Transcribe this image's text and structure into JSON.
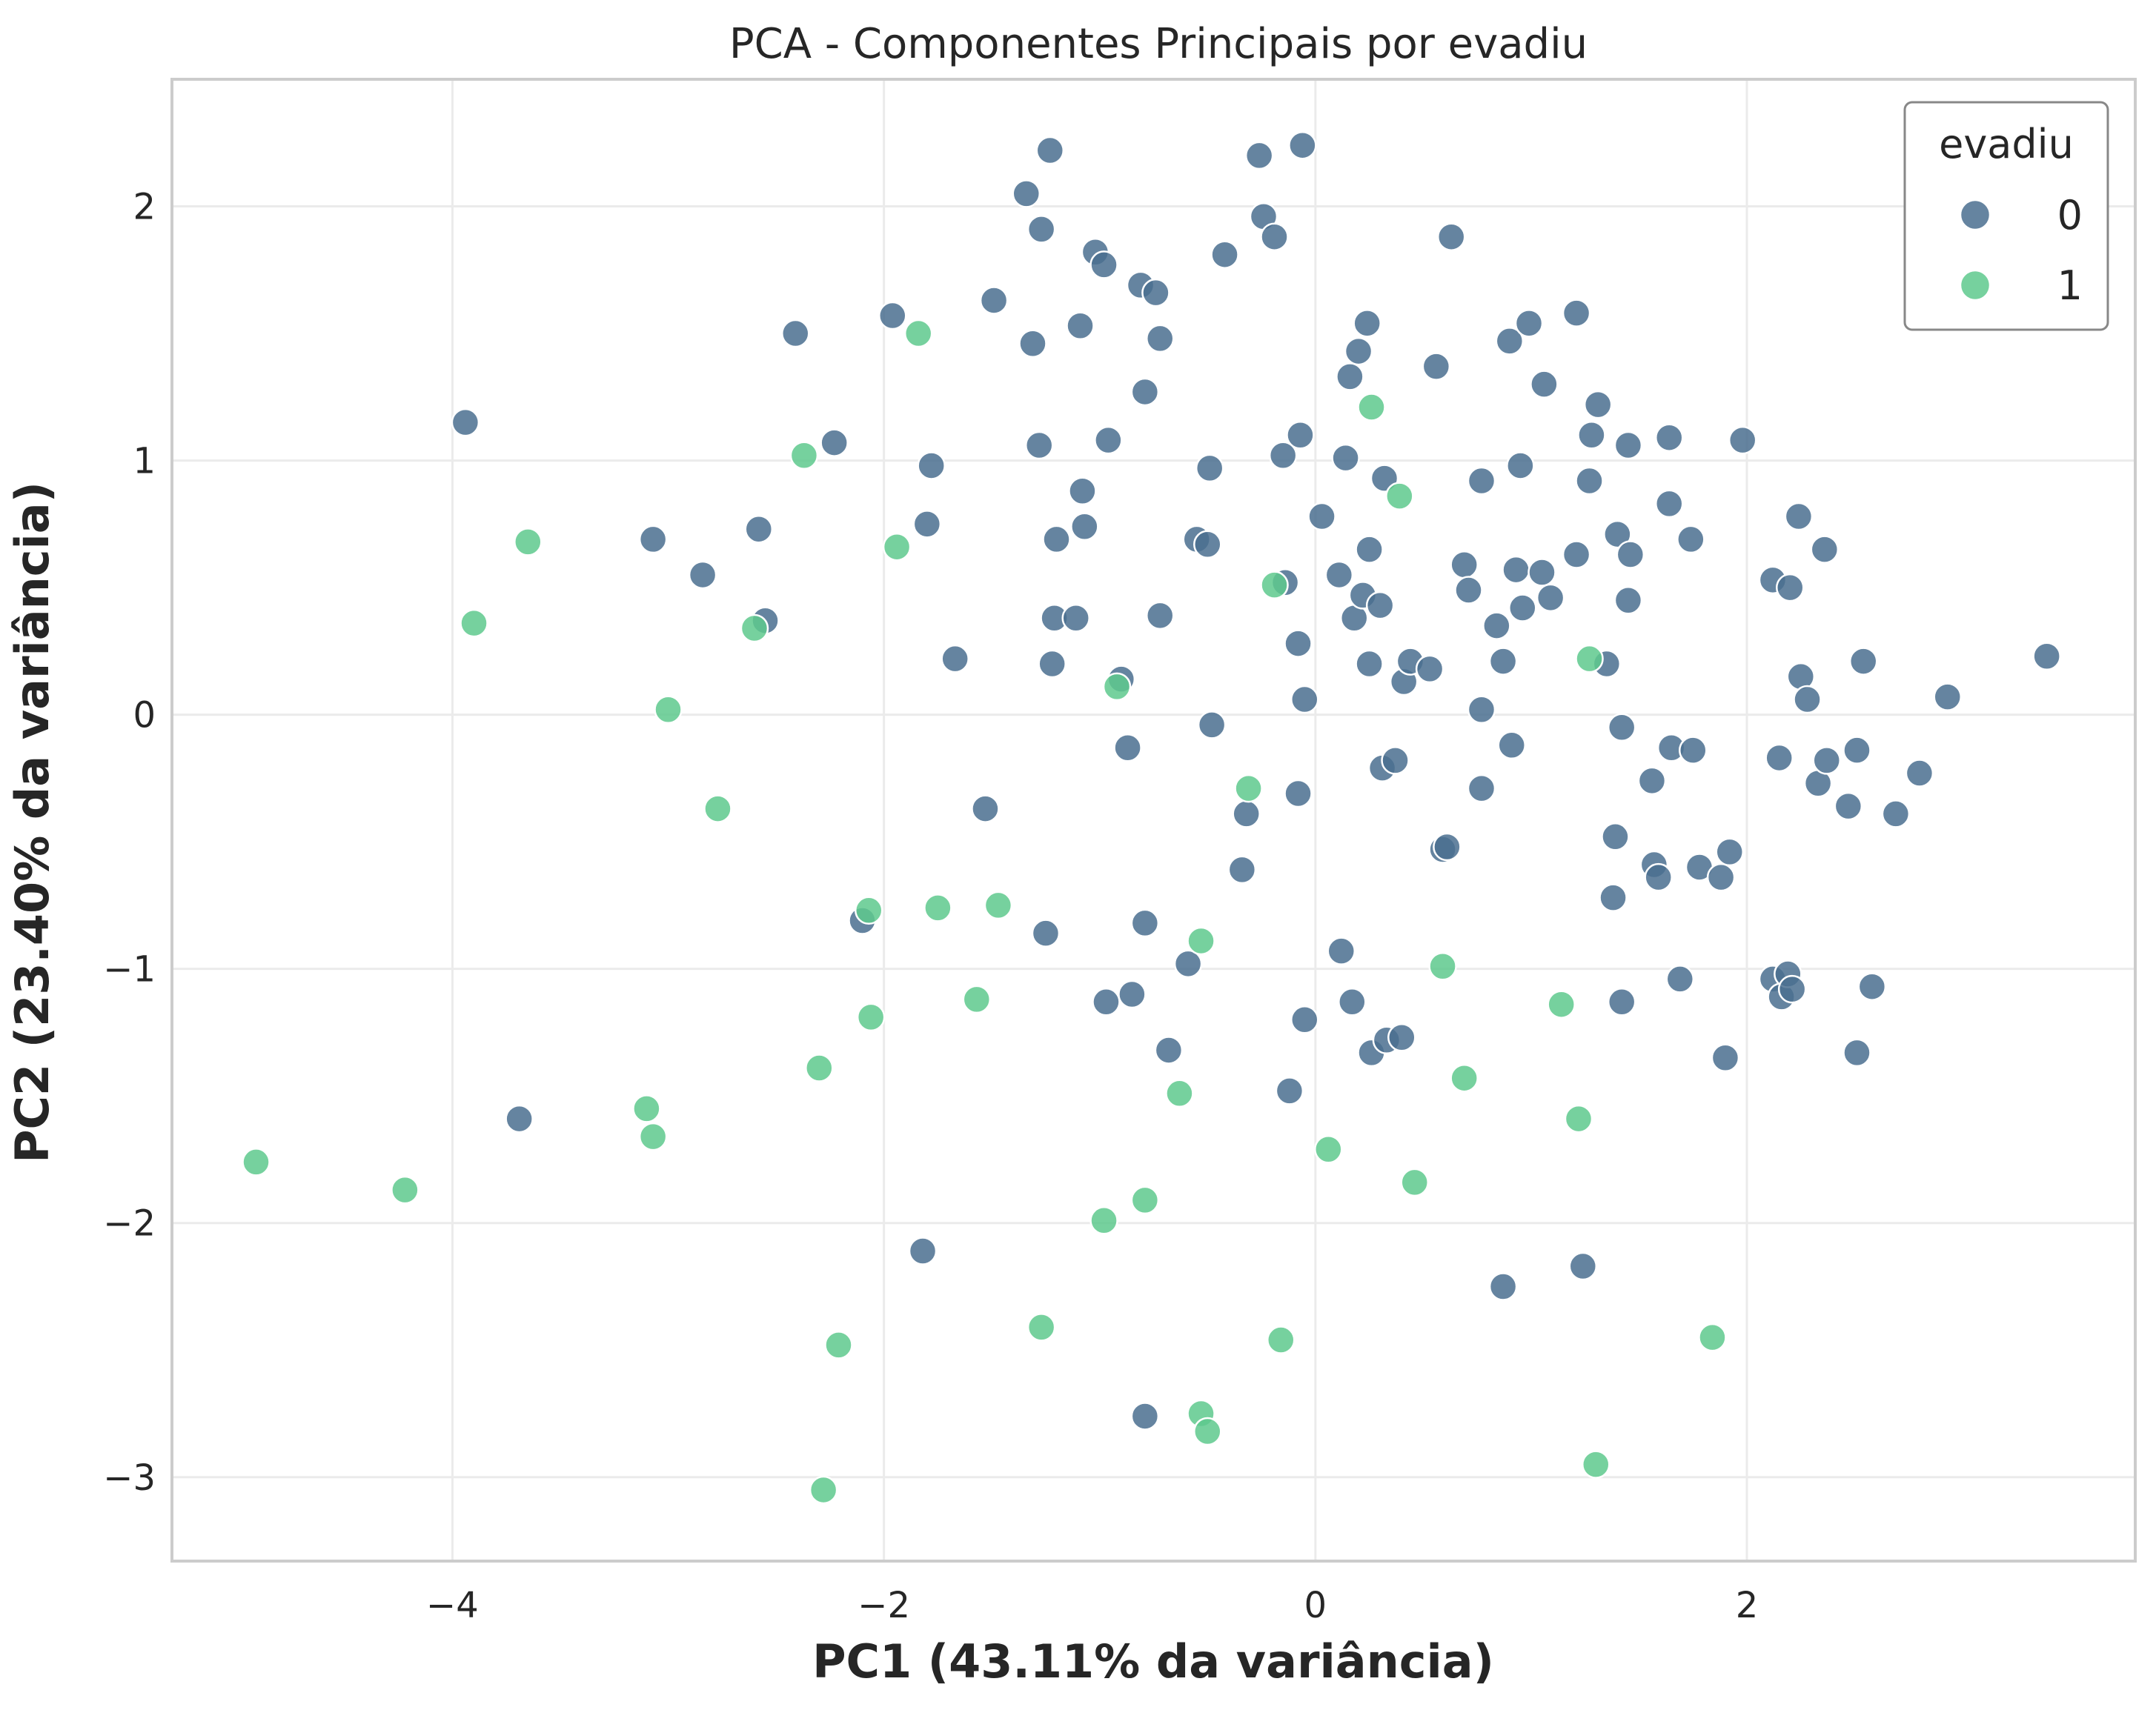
{
  "chart_data": {
    "type": "scatter",
    "title": "PCA - Componentes Principais por evadiu",
    "xlabel": "PC1 (43.11% da variância)",
    "ylabel": "PC2 (23.40% da variância)",
    "xlim": [
      -5.3,
      3.8
    ],
    "ylim": [
      -3.33,
      2.5
    ],
    "xticks": [
      -4,
      -2,
      0,
      2
    ],
    "xtick_labels": [
      "−4",
      "−2",
      "0",
      "2"
    ],
    "yticks": [
      -3,
      -2,
      -1,
      0,
      1,
      2
    ],
    "ytick_labels": [
      "−3",
      "−2",
      "−1",
      "0",
      "1",
      "2"
    ],
    "grid": true,
    "legend": {
      "title": "evadiu",
      "placement": "top-right"
    },
    "series": [
      {
        "name": "0",
        "color": "#4a6f8f",
        "points": [
          [
            -3.94,
            1.15
          ],
          [
            -3.69,
            -1.59
          ],
          [
            -3.07,
            0.69
          ],
          [
            -2.84,
            0.55
          ],
          [
            -2.58,
            0.73
          ],
          [
            -2.55,
            0.37
          ],
          [
            -2.41,
            1.5
          ],
          [
            -2.23,
            1.07
          ],
          [
            -2.1,
            -0.81
          ],
          [
            -1.96,
            1.57
          ],
          [
            -1.82,
            -2.11
          ],
          [
            -1.8,
            0.75
          ],
          [
            -1.78,
            0.98
          ],
          [
            -1.67,
            0.22
          ],
          [
            -1.53,
            -0.37
          ],
          [
            -1.49,
            1.63
          ],
          [
            -1.34,
            2.05
          ],
          [
            -1.31,
            1.46
          ],
          [
            -1.28,
            1.06
          ],
          [
            -1.27,
            1.91
          ],
          [
            -1.23,
            2.22
          ],
          [
            -1.22,
            0.2
          ],
          [
            -1.21,
            0.38
          ],
          [
            -1.2,
            0.69
          ],
          [
            -1.25,
            -0.86
          ],
          [
            -1.11,
            0.38
          ],
          [
            -1.09,
            1.53
          ],
          [
            -1.08,
            0.88
          ],
          [
            -1.07,
            0.74
          ],
          [
            -1.02,
            1.82
          ],
          [
            -0.98,
            1.77
          ],
          [
            -0.97,
            -1.13
          ],
          [
            -0.96,
            1.08
          ],
          [
            -0.9,
            0.14
          ],
          [
            -0.87,
            -0.13
          ],
          [
            -0.85,
            -1.1
          ],
          [
            -0.81,
            1.69
          ],
          [
            -0.79,
            1.27
          ],
          [
            -0.79,
            -0.82
          ],
          [
            -0.79,
            -2.76
          ],
          [
            -0.74,
            1.66
          ],
          [
            -0.72,
            1.48
          ],
          [
            -0.72,
            0.39
          ],
          [
            -0.68,
            -1.32
          ],
          [
            -0.59,
            -0.98
          ],
          [
            -0.55,
            0.69
          ],
          [
            -0.5,
            0.67
          ],
          [
            -0.49,
            0.97
          ],
          [
            -0.48,
            -0.04
          ],
          [
            -0.42,
            1.81
          ],
          [
            -0.34,
            -0.61
          ],
          [
            -0.32,
            -0.39
          ],
          [
            -0.26,
            2.2
          ],
          [
            -0.24,
            1.96
          ],
          [
            -0.19,
            1.88
          ],
          [
            -0.15,
            1.02
          ],
          [
            -0.14,
            0.52
          ],
          [
            -0.12,
            -1.48
          ],
          [
            -0.08,
            0.28
          ],
          [
            -0.08,
            -0.31
          ],
          [
            -0.07,
            1.1
          ],
          [
            -0.06,
            2.24
          ],
          [
            -0.05,
            0.06
          ],
          [
            -0.05,
            -1.2
          ],
          [
            0.03,
            0.78
          ],
          [
            0.11,
            0.55
          ],
          [
            0.12,
            -0.93
          ],
          [
            0.14,
            1.01
          ],
          [
            0.16,
            1.33
          ],
          [
            0.17,
            -1.13
          ],
          [
            0.18,
            0.38
          ],
          [
            0.2,
            1.43
          ],
          [
            0.22,
            0.47
          ],
          [
            0.24,
            1.54
          ],
          [
            0.25,
            0.65
          ],
          [
            0.25,
            0.2
          ],
          [
            0.26,
            -1.33
          ],
          [
            0.3,
            0.43
          ],
          [
            0.31,
            -0.21
          ],
          [
            0.32,
            0.93
          ],
          [
            0.33,
            -1.28
          ],
          [
            0.37,
            -0.18
          ],
          [
            0.4,
            -1.27
          ],
          [
            0.41,
            0.13
          ],
          [
            0.44,
            0.21
          ],
          [
            0.53,
            0.18
          ],
          [
            0.56,
            1.37
          ],
          [
            0.59,
            -0.53
          ],
          [
            0.61,
            -0.52
          ],
          [
            0.63,
            1.88
          ],
          [
            0.69,
            0.59
          ],
          [
            0.71,
            0.49
          ],
          [
            0.77,
            0.92
          ],
          [
            0.77,
            0.02
          ],
          [
            0.77,
            -0.29
          ],
          [
            0.84,
            0.35
          ],
          [
            0.87,
            0.21
          ],
          [
            0.87,
            -2.25
          ],
          [
            0.9,
            1.47
          ],
          [
            0.91,
            -0.12
          ],
          [
            0.93,
            0.57
          ],
          [
            0.95,
            0.98
          ],
          [
            0.96,
            0.42
          ],
          [
            0.99,
            1.54
          ],
          [
            1.05,
            0.56
          ],
          [
            1.06,
            1.3
          ],
          [
            1.09,
            0.46
          ],
          [
            1.21,
            0.63
          ],
          [
            1.21,
            1.58
          ],
          [
            1.24,
            -2.17
          ],
          [
            1.27,
            0.92
          ],
          [
            1.28,
            1.1
          ],
          [
            1.31,
            1.22
          ],
          [
            1.35,
            0.2
          ],
          [
            1.38,
            -0.72
          ],
          [
            1.39,
            -0.48
          ],
          [
            1.4,
            0.71
          ],
          [
            1.42,
            -1.13
          ],
          [
            1.42,
            -0.05
          ],
          [
            1.45,
            1.06
          ],
          [
            1.45,
            0.45
          ],
          [
            1.46,
            0.63
          ],
          [
            1.56,
            -0.26
          ],
          [
            1.57,
            -0.59
          ],
          [
            1.59,
            -0.64
          ],
          [
            1.64,
            1.09
          ],
          [
            1.64,
            0.83
          ],
          [
            1.65,
            -0.13
          ],
          [
            1.69,
            -1.04
          ],
          [
            1.74,
            0.69
          ],
          [
            1.75,
            -0.14
          ],
          [
            1.78,
            -0.6
          ],
          [
            1.88,
            -0.64
          ],
          [
            1.9,
            -1.35
          ],
          [
            1.92,
            -0.54
          ],
          [
            1.98,
            1.08
          ],
          [
            2.12,
            0.53
          ],
          [
            2.12,
            -1.04
          ],
          [
            2.15,
            -0.17
          ],
          [
            2.16,
            -1.11
          ],
          [
            2.19,
            -1.02
          ],
          [
            2.2,
            0.5
          ],
          [
            2.21,
            -1.08
          ],
          [
            2.24,
            0.78
          ],
          [
            2.25,
            0.15
          ],
          [
            2.28,
            0.06
          ],
          [
            2.33,
            -0.27
          ],
          [
            2.36,
            0.65
          ],
          [
            2.37,
            -0.18
          ],
          [
            2.47,
            -0.36
          ],
          [
            2.51,
            -0.14
          ],
          [
            2.51,
            -1.33
          ],
          [
            2.54,
            0.21
          ],
          [
            2.58,
            -1.07
          ],
          [
            2.69,
            -0.39
          ],
          [
            2.8,
            -0.23
          ],
          [
            2.93,
            0.07
          ],
          [
            3.39,
            0.23
          ]
        ]
      },
      {
        "name": "1",
        "color": "#5ec98d",
        "points": [
          [
            -4.91,
            -1.76
          ],
          [
            -4.22,
            -1.87
          ],
          [
            -3.9,
            0.36
          ],
          [
            -3.65,
            0.68
          ],
          [
            -3.1,
            -1.55
          ],
          [
            -3.07,
            -1.66
          ],
          [
            -3.0,
            0.02
          ],
          [
            -2.77,
            -0.37
          ],
          [
            -2.6,
            0.34
          ],
          [
            -2.37,
            1.02
          ],
          [
            -2.3,
            -1.39
          ],
          [
            -2.28,
            -3.05
          ],
          [
            -2.21,
            -2.48
          ],
          [
            -2.07,
            -0.77
          ],
          [
            -2.06,
            -1.19
          ],
          [
            -1.94,
            0.66
          ],
          [
            -1.84,
            1.5
          ],
          [
            -1.75,
            -0.76
          ],
          [
            -1.57,
            -1.12
          ],
          [
            -1.47,
            -0.75
          ],
          [
            -1.27,
            -2.41
          ],
          [
            -0.98,
            -1.99
          ],
          [
            -0.92,
            0.11
          ],
          [
            -0.79,
            -1.91
          ],
          [
            -0.63,
            -1.49
          ],
          [
            -0.53,
            -0.89
          ],
          [
            -0.53,
            -2.75
          ],
          [
            -0.5,
            -2.82
          ],
          [
            -0.31,
            -0.29
          ],
          [
            -0.19,
            0.51
          ],
          [
            -0.16,
            -2.46
          ],
          [
            0.06,
            -1.71
          ],
          [
            0.26,
            1.21
          ],
          [
            0.39,
            0.86
          ],
          [
            0.46,
            -1.84
          ],
          [
            0.59,
            -0.99
          ],
          [
            0.69,
            -1.43
          ],
          [
            1.14,
            -1.14
          ],
          [
            1.22,
            -1.59
          ],
          [
            1.27,
            0.22
          ],
          [
            1.3,
            -2.95
          ],
          [
            1.84,
            -2.45
          ]
        ]
      }
    ]
  }
}
